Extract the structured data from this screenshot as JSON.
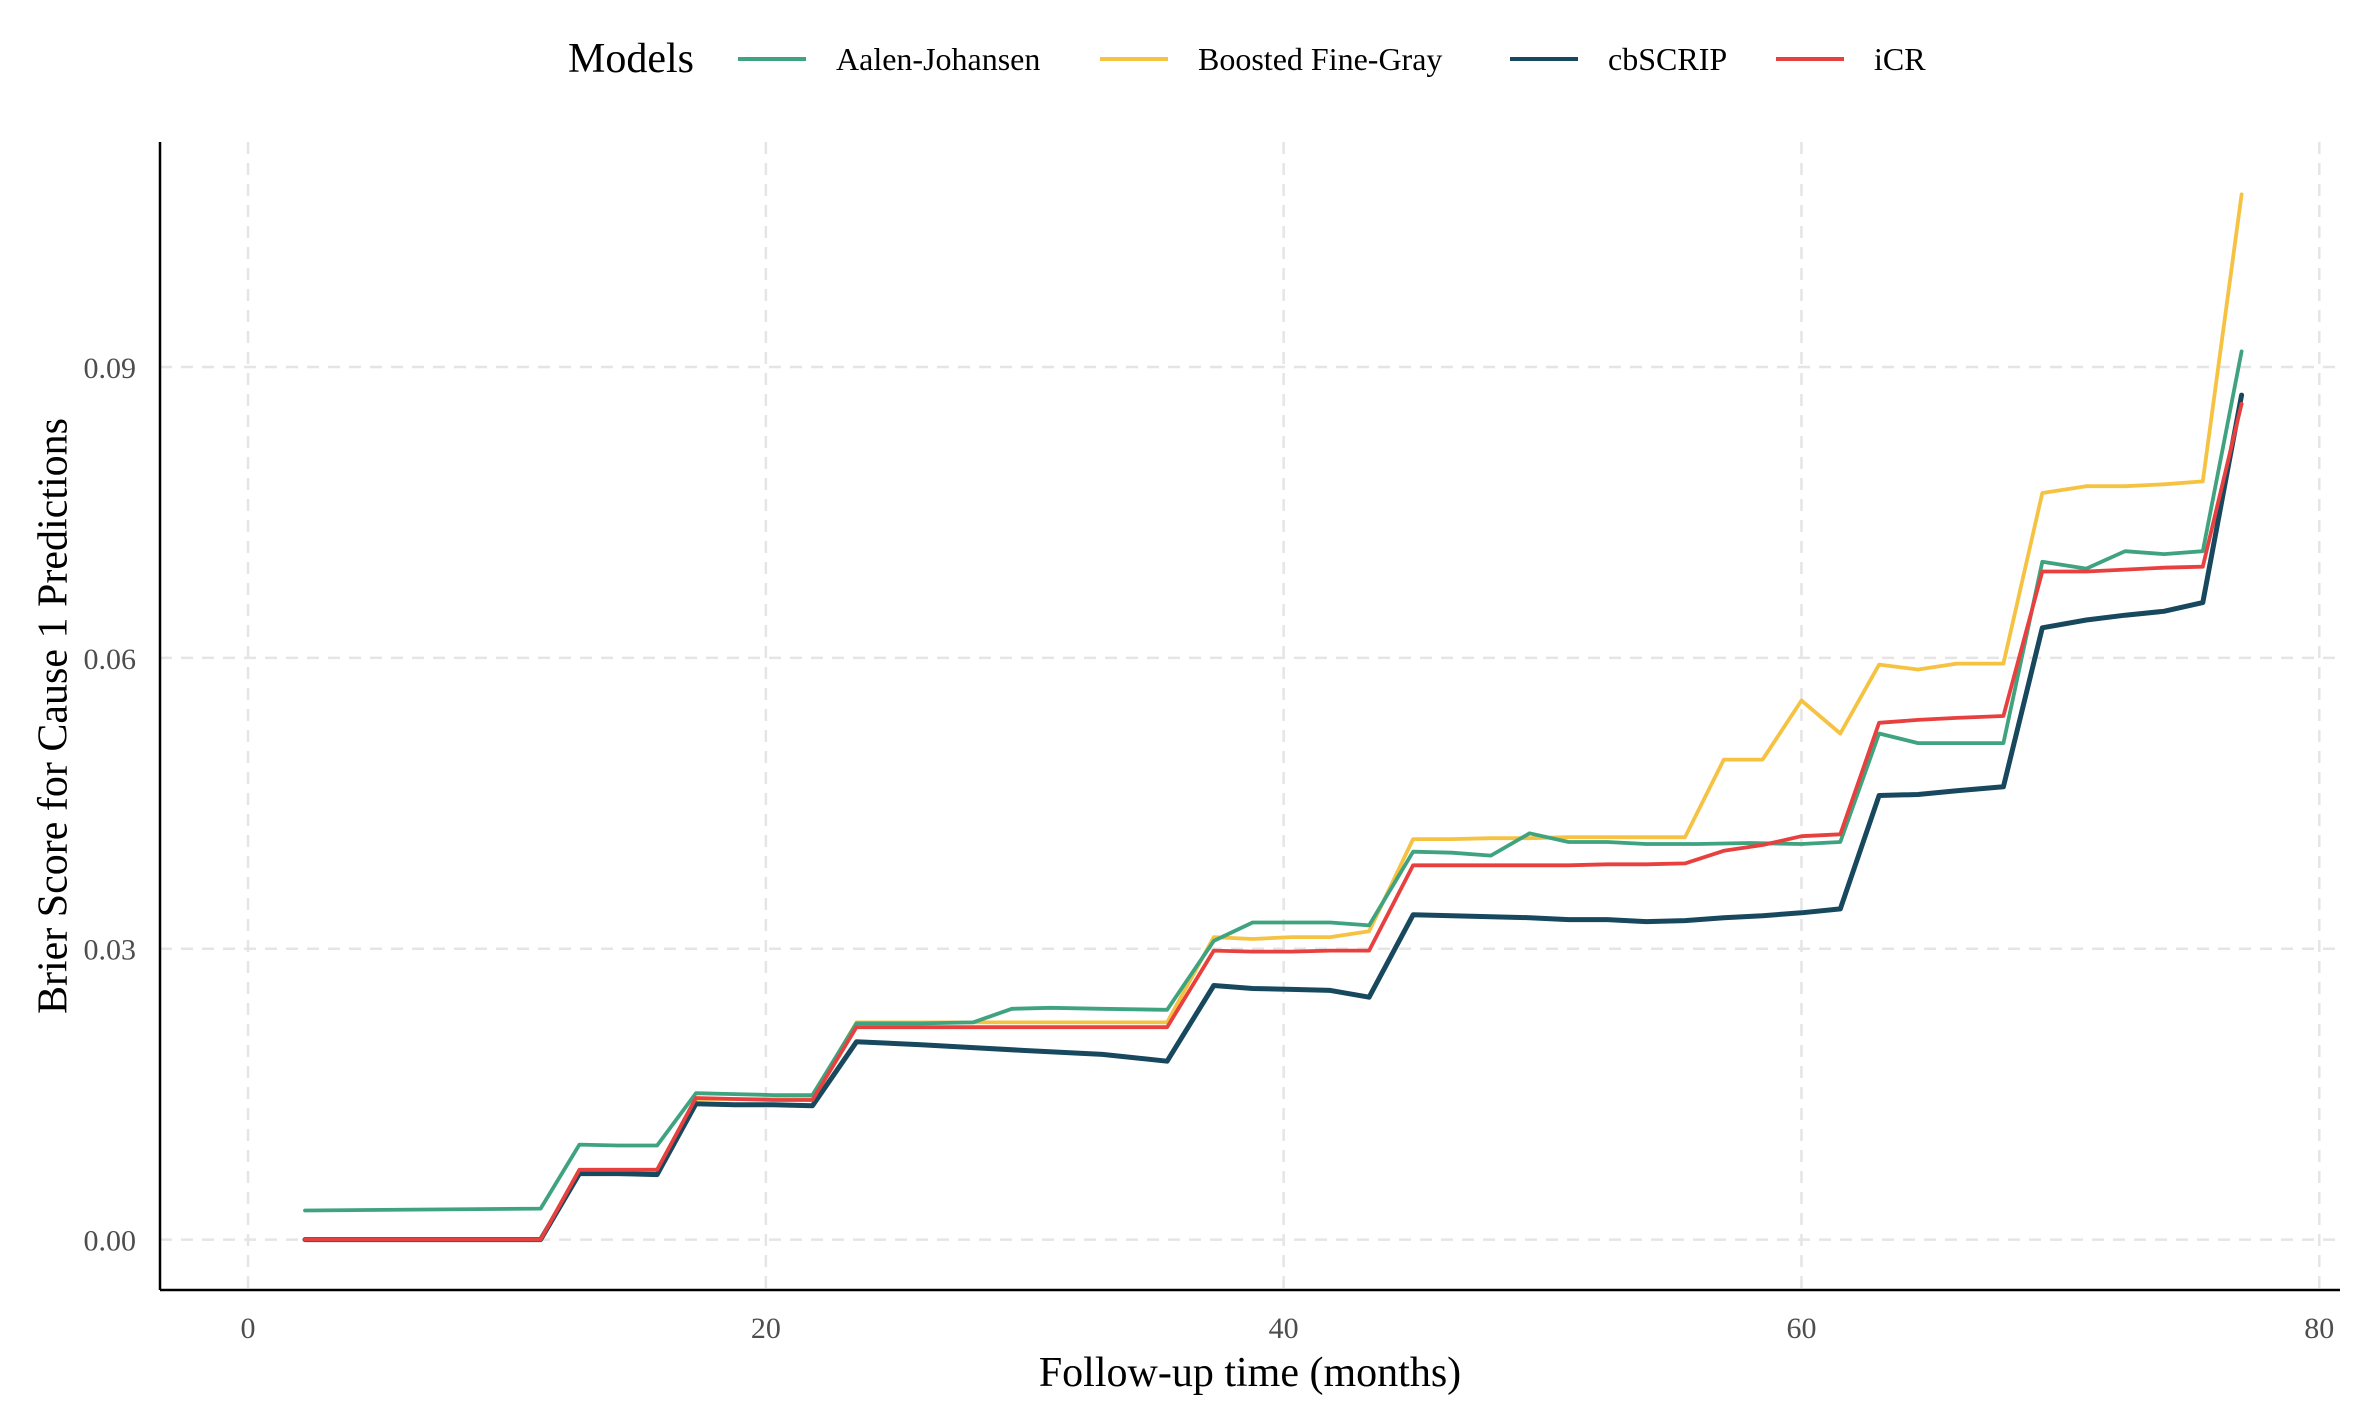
{
  "chart_data": {
    "type": "line",
    "title": "",
    "xlabel": "Follow-up time (months)",
    "ylabel": "Brier Score for Cause 1 Predictions",
    "xlim": [
      -3.4,
      80.8
    ],
    "ylim": [
      -0.0052,
      0.1132
    ],
    "xticks": [
      0,
      20,
      40,
      60,
      80
    ],
    "yticks": [
      0.0,
      0.03,
      0.06,
      0.09
    ],
    "ytick_labels": [
      "0.00",
      "0.03",
      "0.06",
      "0.09"
    ],
    "grid": true,
    "legend": {
      "title": "Models",
      "position": "top"
    },
    "series": [
      {
        "name": "Aalen-Johansen",
        "color": "#3fa37f",
        "x": [
          2.2,
          11.3,
          12.8,
          14.3,
          15.8,
          17.3,
          18.8,
          20.3,
          21.8,
          23.5,
          26.0,
          28.0,
          29.5,
          31.0,
          33.0,
          35.5,
          37.3,
          38.8,
          40.3,
          41.8,
          43.3,
          45.0,
          46.5,
          48.0,
          49.5,
          51.0,
          52.5,
          54.0,
          56.0,
          58.0,
          60.0,
          61.5,
          63.0,
          64.5,
          66.0,
          67.8,
          69.3,
          71.0,
          72.5,
          74.0,
          75.5,
          77.0
        ],
        "y": [
          0.003,
          0.0032,
          0.0098,
          0.0097,
          0.0097,
          0.0151,
          0.015,
          0.0149,
          0.0149,
          0.0223,
          0.0223,
          0.0224,
          0.0238,
          0.0239,
          0.0238,
          0.0237,
          0.0308,
          0.0327,
          0.0327,
          0.0327,
          0.0324,
          0.04,
          0.0399,
          0.0396,
          0.0419,
          0.041,
          0.041,
          0.0408,
          0.0408,
          0.0409,
          0.0408,
          0.041,
          0.0522,
          0.0512,
          0.0512,
          0.0512,
          0.0699,
          0.0692,
          0.071,
          0.0707,
          0.071,
          0.0916
        ]
      },
      {
        "name": "Boosted Fine-Gray",
        "color": "#f5c242",
        "x": [
          2.2,
          11.3,
          12.8,
          14.3,
          15.8,
          17.3,
          18.8,
          20.3,
          21.8,
          23.5,
          26.0,
          28.0,
          30.0,
          33.0,
          35.5,
          37.3,
          38.8,
          40.3,
          41.8,
          43.3,
          45.0,
          46.5,
          48.0,
          49.5,
          51.0,
          52.5,
          54.0,
          55.5,
          57.0,
          58.5,
          60.0,
          61.5,
          63.0,
          64.5,
          66.0,
          67.8,
          69.3,
          71.0,
          72.5,
          74.0,
          75.5,
          77.0
        ],
        "y": [
          0.0,
          0.0,
          0.0072,
          0.0072,
          0.0072,
          0.0145,
          0.0145,
          0.0145,
          0.0147,
          0.0224,
          0.0224,
          0.0224,
          0.0224,
          0.0224,
          0.0224,
          0.0312,
          0.031,
          0.0312,
          0.0312,
          0.0318,
          0.0413,
          0.0413,
          0.0414,
          0.0414,
          0.0415,
          0.0415,
          0.0415,
          0.0415,
          0.0495,
          0.0495,
          0.0556,
          0.0522,
          0.0593,
          0.0588,
          0.0594,
          0.0594,
          0.077,
          0.0777,
          0.0777,
          0.0779,
          0.0782,
          0.1078
        ]
      },
      {
        "name": "cbSCRIP",
        "color": "#17485e",
        "x": [
          2.2,
          11.3,
          12.8,
          14.3,
          15.8,
          17.3,
          18.8,
          20.3,
          21.8,
          23.5,
          26.0,
          28.0,
          30.0,
          33.0,
          35.5,
          37.3,
          38.8,
          40.3,
          41.8,
          43.3,
          45.0,
          46.5,
          48.0,
          49.5,
          51.0,
          52.5,
          54.0,
          55.5,
          57.0,
          58.5,
          60.0,
          61.5,
          63.0,
          64.5,
          66.0,
          67.8,
          69.3,
          71.0,
          72.5,
          74.0,
          75.5,
          77.0
        ],
        "y": [
          0.0,
          0.0,
          0.0068,
          0.0068,
          0.0067,
          0.014,
          0.0139,
          0.0139,
          0.0138,
          0.0204,
          0.0201,
          0.0198,
          0.0195,
          0.0191,
          0.0184,
          0.0262,
          0.0259,
          0.0258,
          0.0257,
          0.025,
          0.0335,
          0.0334,
          0.0333,
          0.0332,
          0.033,
          0.033,
          0.0328,
          0.0329,
          0.0332,
          0.0334,
          0.0337,
          0.0341,
          0.0458,
          0.0459,
          0.0463,
          0.0467,
          0.0631,
          0.0639,
          0.0644,
          0.0648,
          0.0657,
          0.0871
        ]
      },
      {
        "name": "iCR",
        "color": "#e8403e",
        "x": [
          2.2,
          11.3,
          12.8,
          14.3,
          15.8,
          17.3,
          18.8,
          20.3,
          21.8,
          23.5,
          26.0,
          28.0,
          30.0,
          33.0,
          35.5,
          37.3,
          38.8,
          40.3,
          41.8,
          43.3,
          45.0,
          46.5,
          48.0,
          49.5,
          51.0,
          52.5,
          54.0,
          55.5,
          57.0,
          58.5,
          60.0,
          61.5,
          63.0,
          64.5,
          66.0,
          67.8,
          69.3,
          71.0,
          72.5,
          74.0,
          75.5,
          77.0
        ],
        "y": [
          0.0,
          0.0,
          0.0072,
          0.0072,
          0.0072,
          0.0146,
          0.0145,
          0.0144,
          0.0144,
          0.0219,
          0.0219,
          0.0219,
          0.0219,
          0.0219,
          0.0219,
          0.0298,
          0.0297,
          0.0297,
          0.0298,
          0.0298,
          0.0386,
          0.0386,
          0.0386,
          0.0386,
          0.0386,
          0.0387,
          0.0387,
          0.0388,
          0.0401,
          0.0407,
          0.0416,
          0.0418,
          0.0533,
          0.0536,
          0.0538,
          0.054,
          0.0689,
          0.0689,
          0.0691,
          0.0693,
          0.0694,
          0.0862
        ]
      }
    ]
  }
}
